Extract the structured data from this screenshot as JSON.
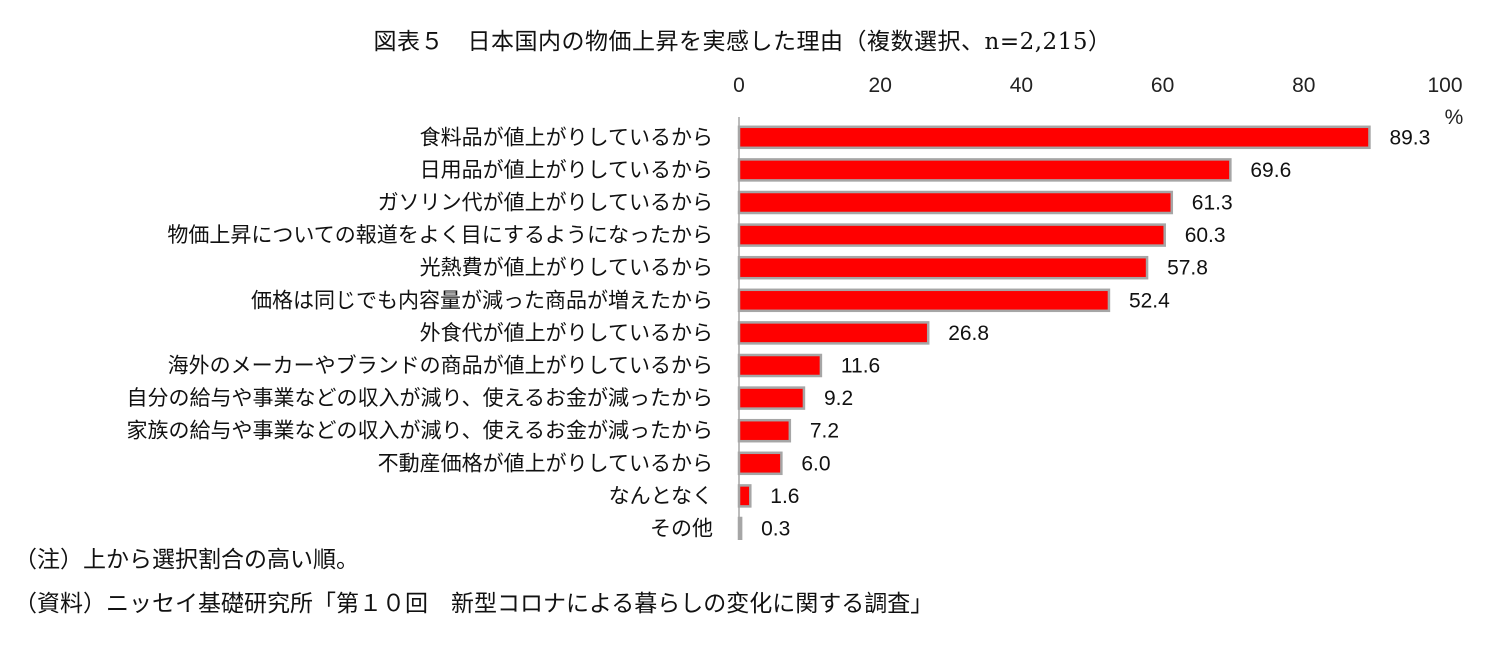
{
  "title": "図表５　日本国内の物価上昇を実感した理由（複数選択、n=2,215）",
  "notes": {
    "note": "（注）上から選択割合の高い順。",
    "source": "（資料）ニッセイ基礎研究所「第１０回　新型コロナによる暮らしの変化に関する調査」"
  },
  "colors": {
    "bar_fill": "#ff0000",
    "bar_stroke": "#a6a6a6",
    "axis": "#a6a6a6"
  },
  "chart_data": {
    "type": "bar",
    "orientation": "horizontal",
    "title": "図表５　日本国内の物価上昇を実感した理由（複数選択、n=2,215）",
    "unit_label": "%",
    "xlim": [
      0,
      100
    ],
    "ticks": [
      0,
      20,
      40,
      60,
      80,
      100
    ],
    "tick_position": "top",
    "grid": false,
    "categories": [
      "食料品が値上がりしているから",
      "日用品が値上がりしているから",
      "ガソリン代が値上がりしているから",
      "物価上昇についての報道をよく目にするようになったから",
      "光熱費が値上がりしているから",
      "価格は同じでも内容量が減った商品が増えたから",
      "外食代が値上がりしているから",
      "海外のメーカーやブランドの商品が値上がりしているから",
      "自分の給与や事業などの収入が減り、使えるお金が減ったから",
      "家族の給与や事業などの収入が減り、使えるお金が減ったから",
      "不動産価格が値上がりしているから",
      "なんとなく",
      "その他"
    ],
    "values": [
      89.3,
      69.6,
      61.3,
      60.3,
      57.8,
      52.4,
      26.8,
      11.6,
      9.2,
      7.2,
      6.0,
      1.6,
      0.3
    ],
    "value_labels": [
      "89.3",
      "69.6",
      "61.3",
      "60.3",
      "57.8",
      "52.4",
      "26.8",
      "11.6",
      "9.2",
      "7.2",
      "6.0",
      "1.6",
      "0.3"
    ]
  }
}
